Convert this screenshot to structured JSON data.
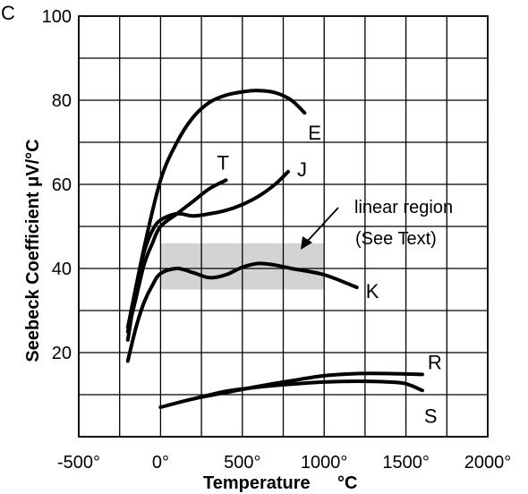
{
  "corner_mark": "C",
  "chart_data": {
    "type": "line",
    "xlabel": "Temperature",
    "xunit": "°C",
    "ylabel": "Seebeck Coefficient μV/°C",
    "xlim": [
      -500,
      2000
    ],
    "ylim": [
      0,
      100
    ],
    "x_ticks": [
      -500,
      0,
      500,
      1000,
      1500,
      2000
    ],
    "x_tick_labels": [
      "-500°",
      "0°",
      "500°",
      "1000°",
      "1500°",
      "2000°"
    ],
    "y_ticks": [
      20,
      40,
      60,
      80,
      100
    ],
    "y_tick_labels": [
      "20",
      "40",
      "60",
      "80",
      "100"
    ],
    "grid": true,
    "series": [
      {
        "name": "E",
        "points": [
          [
            -200,
            26
          ],
          [
            -100,
            45
          ],
          [
            0,
            61
          ],
          [
            100,
            70
          ],
          [
            200,
            76
          ],
          [
            300,
            79.5
          ],
          [
            400,
            81.2
          ],
          [
            500,
            82
          ],
          [
            600,
            82.3
          ],
          [
            700,
            81.8
          ],
          [
            800,
            80
          ],
          [
            880,
            77
          ]
        ]
      },
      {
        "name": "T",
        "points": [
          [
            -200,
            25
          ],
          [
            -150,
            33
          ],
          [
            -100,
            41
          ],
          [
            -50,
            46
          ],
          [
            0,
            50
          ],
          [
            100,
            53
          ],
          [
            200,
            56
          ],
          [
            300,
            59
          ],
          [
            400,
            61
          ]
        ]
      },
      {
        "name": "J",
        "points": [
          [
            -200,
            23
          ],
          [
            -150,
            35
          ],
          [
            -100,
            44
          ],
          [
            -50,
            49
          ],
          [
            0,
            51.5
          ],
          [
            100,
            53
          ],
          [
            200,
            52.5
          ],
          [
            300,
            53
          ],
          [
            400,
            53.8
          ],
          [
            500,
            55.2
          ],
          [
            600,
            57.2
          ],
          [
            700,
            60
          ],
          [
            780,
            63
          ]
        ]
      },
      {
        "name": "K",
        "points": [
          [
            -200,
            18
          ],
          [
            -150,
            26
          ],
          [
            -100,
            32
          ],
          [
            -50,
            36
          ],
          [
            0,
            38.8
          ],
          [
            100,
            40
          ],
          [
            200,
            39
          ],
          [
            300,
            37.8
          ],
          [
            400,
            38.5
          ],
          [
            500,
            40.3
          ],
          [
            600,
            41.2
          ],
          [
            700,
            40.8
          ],
          [
            800,
            40
          ],
          [
            1000,
            38.5
          ],
          [
            1200,
            35.5
          ]
        ]
      },
      {
        "name": "R",
        "points": [
          [
            0,
            7
          ],
          [
            200,
            9
          ],
          [
            400,
            10.5
          ],
          [
            600,
            12
          ],
          [
            800,
            13.3
          ],
          [
            1000,
            14.5
          ],
          [
            1200,
            15
          ],
          [
            1400,
            15
          ],
          [
            1600,
            14.8
          ]
        ]
      },
      {
        "name": "S",
        "points": [
          [
            200,
            9
          ],
          [
            400,
            10.8
          ],
          [
            600,
            11.8
          ],
          [
            800,
            12.5
          ],
          [
            1000,
            13
          ],
          [
            1200,
            13.2
          ],
          [
            1400,
            13
          ],
          [
            1500,
            12.6
          ],
          [
            1600,
            11
          ]
        ]
      }
    ],
    "linear_region": {
      "x": [
        0,
        1000
      ],
      "y": [
        35,
        46
      ]
    },
    "annotation": {
      "line1": "linear region",
      "line2": "(See Text)"
    }
  }
}
